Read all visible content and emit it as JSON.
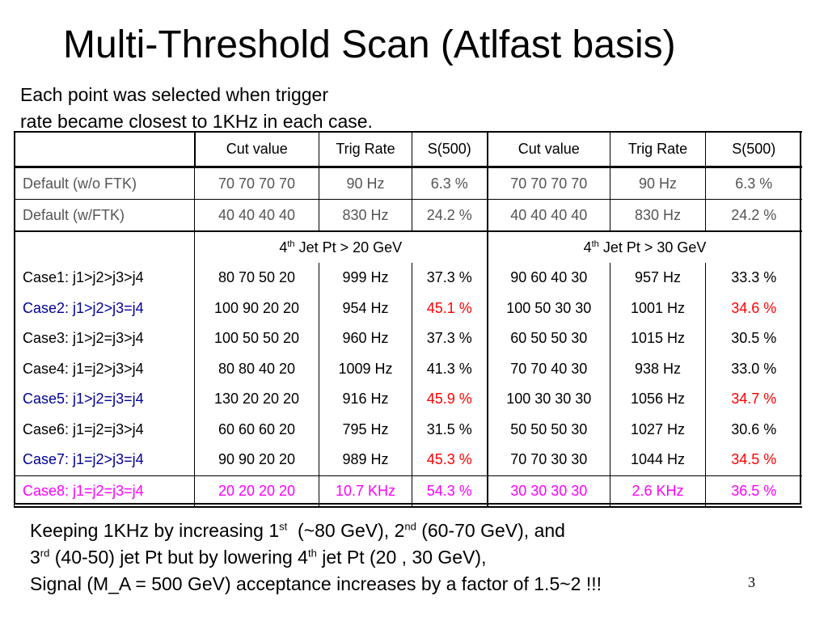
{
  "title": "Multi-Threshold Scan (Atlfast basis)",
  "intro": {
    "line1": "Each point was selected when trigger",
    "line2": "rate became closest to 1KHz in each case."
  },
  "table": {
    "headers": [
      "",
      "Cut value",
      "Trig Rate",
      "S(500)",
      "Cut value",
      "Trig Rate",
      "S(500)"
    ],
    "defaults": [
      {
        "label": "Default (w/o FTK)",
        "cells": [
          "70 70 70 70",
          "90 Hz",
          "6.3 %",
          "70 70 70 70",
          "90 Hz",
          "6.3 %"
        ]
      },
      {
        "label": "Default (w/FTK)",
        "cells": [
          "40 40 40 40",
          "830 Hz",
          "24.2 %",
          "40 40 40 40",
          "830 Hz",
          "24.2 %"
        ]
      }
    ],
    "section": {
      "left": {
        "pre": "4",
        "sup": "th",
        "post": " Jet Pt > 20 GeV"
      },
      "right": {
        "pre": "4",
        "sup": "th",
        "post": " Jet Pt > 30 GeV"
      }
    },
    "cases": [
      {
        "label": "Case1: j1>j2>j3>j4",
        "cells": [
          "80 70 50 20",
          "999 Hz",
          "37.3 %",
          "90 60 40 30",
          "957 Hz",
          "33.3 %"
        ]
      },
      {
        "label": "Case2: j1>j2>j3=j4",
        "cells": [
          "100 90 20 20",
          "954 Hz",
          "45.1 %",
          "100 50 30 30",
          "1001 Hz",
          "34.6 %"
        ]
      },
      {
        "label": "Case3: j1>j2=j3>j4",
        "cells": [
          "100 50 50 20",
          "960 Hz",
          "37.3 %",
          "60 50 50 30",
          "1015 Hz",
          "30.5 %"
        ]
      },
      {
        "label": "Case4: j1=j2>j3>j4",
        "cells": [
          "80 80 40 20",
          "1009 Hz",
          "41.3 %",
          "70 70 40 30",
          "938 Hz",
          "33.0 %"
        ]
      },
      {
        "label": "Case5: j1>j2=j3=j4",
        "cells": [
          "130 20 20 20",
          "916 Hz",
          "45.9 %",
          "100 30 30 30",
          "1056 Hz",
          "34.7 %"
        ]
      },
      {
        "label": "Case6: j1=j2=j3>j4",
        "cells": [
          "60 60 60 20",
          "795 Hz",
          "31.5 %",
          "50 50 50 30",
          "1027 Hz",
          "30.6 %"
        ]
      },
      {
        "label": "Case7: j1=j2>j3=j4",
        "cells": [
          "90 90 20 20",
          "989 Hz",
          "45.3 %",
          "70 70 30 30",
          "1044 Hz",
          "34.5 %"
        ]
      },
      {
        "label": "Case8: j1=j2=j3=j4",
        "cells": [
          "20 20 20 20",
          "10.7 KHz",
          "54.3 %",
          "30 30 30 30",
          "2.6 KHz",
          "36.5 %"
        ]
      }
    ]
  },
  "footer": {
    "l1a": "Keeping 1KHz by increasing 1",
    "l1sup1": "st",
    "l1b": "  (~80 GeV), 2",
    "l1sup2": "nd",
    "l1c": " (60-70 GeV), and",
    "l2a": "3",
    "l2sup1": "rd",
    "l2b": " (40-50) jet Pt but by lowering 4",
    "l2sup2": "th",
    "l2c": " jet Pt (20 , 30 GeV),",
    "l3": "Signal (M_A = 500 GeV) acceptance increases by a factor of 1.5~2 !!!"
  },
  "page_number": "3",
  "colors": {
    "highlight_red": "#ff0000",
    "case_blue": "#000099",
    "case_magenta": "#ff00ff",
    "default_gray": "#555555"
  }
}
